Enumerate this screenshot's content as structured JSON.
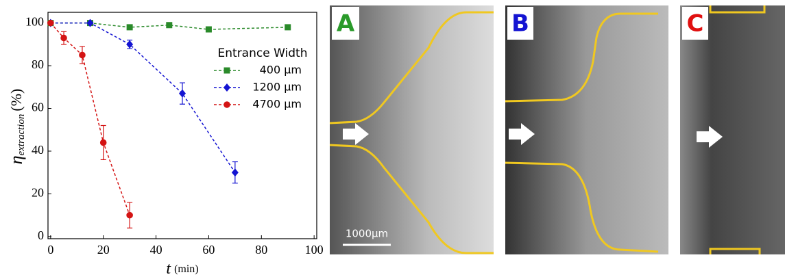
{
  "chart_data": {
    "type": "line",
    "xlabel": {
      "symbol": "t",
      "unit": "(min)"
    },
    "ylabel": {
      "symbol": "η",
      "subscript": "extraction",
      "unit": "(%)"
    },
    "legend_title": "Entrance Width",
    "legend": "upper right",
    "xlim": [
      -1,
      101
    ],
    "xticks": [
      0,
      20,
      40,
      60,
      80,
      100
    ],
    "ylim": [
      -1,
      105
    ],
    "yticks": [
      0,
      20,
      40,
      60,
      80,
      100
    ],
    "grid": false,
    "series": [
      {
        "name": "400 µm",
        "color": "#2a8a2a",
        "marker": "square",
        "x": [
          0,
          15,
          30,
          45,
          60,
          90
        ],
        "values": [
          100,
          100,
          98,
          99,
          97,
          98
        ],
        "errors": [
          1,
          1,
          1,
          1,
          1,
          1
        ]
      },
      {
        "name": "1200 µm",
        "color": "#1414d2",
        "marker": "diamond",
        "x": [
          0,
          15,
          30,
          50,
          70
        ],
        "values": [
          100,
          100,
          90,
          67,
          30
        ],
        "errors": [
          0,
          0,
          2,
          5,
          5
        ]
      },
      {
        "name": "4700 µm",
        "color": "#d41414",
        "marker": "circle",
        "x": [
          0,
          5,
          12,
          20,
          30
        ],
        "values": [
          100,
          93,
          85,
          44,
          10
        ],
        "errors": [
          0,
          3,
          4,
          8,
          6
        ]
      }
    ]
  },
  "panels": [
    {
      "label": "A"
    },
    {
      "label": "B"
    },
    {
      "label": "C"
    }
  ],
  "scale_bar": "1000µm"
}
